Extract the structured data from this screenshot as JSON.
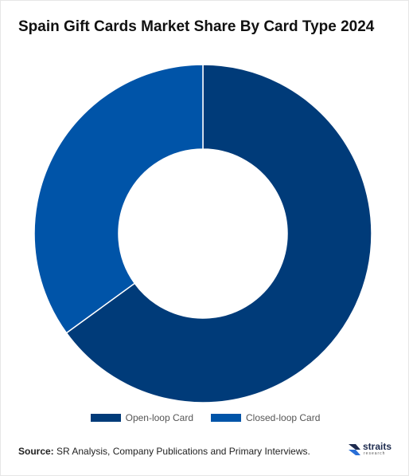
{
  "chart_data": {
    "type": "pie",
    "title": "Spain Gift Cards Market Share By Card Type 2024",
    "categories": [
      "Open-loop Card",
      "Closed-loop Card"
    ],
    "values": [
      65,
      35
    ],
    "colors": [
      "#003b79",
      "#0054a8"
    ],
    "donut": true,
    "legend_position": "bottom"
  },
  "footer": {
    "source_label": "Source:",
    "source_text": " SR Analysis, Company Publications and Primary Interviews."
  },
  "logo": {
    "name": "straits",
    "sub": "research",
    "icon": "straits-logo-icon"
  }
}
